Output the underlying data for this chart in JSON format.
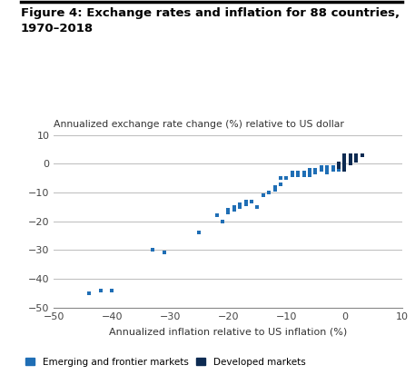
{
  "title": "Figure 4: Exchange rates and inflation for 88 countries,\n1970–2018",
  "ylabel": "Annualized exchange rate change (%) relative to US dollar",
  "xlabel": "Annualized inflation relative to US inflation (%)",
  "xlim": [
    -50,
    10
  ],
  "ylim": [
    -50,
    10
  ],
  "xticks": [
    -50,
    -40,
    -30,
    -20,
    -10,
    0,
    10
  ],
  "yticks": [
    -50,
    -40,
    -30,
    -20,
    -10,
    0,
    10
  ],
  "emerging_color": "#1F6EB5",
  "developed_color": "#0D2B52",
  "legend_emerging": "Emerging and frontier markets",
  "legend_developed": "Developed markets",
  "emerging_x": [
    -44,
    -42,
    -40,
    -33,
    -31,
    -25,
    -22,
    -21,
    -20,
    -20,
    -19,
    -19,
    -18,
    -18,
    -17,
    -17,
    -16,
    -15,
    -14,
    -13,
    -12,
    -12,
    -11,
    -11,
    -10,
    -9,
    -9,
    -8,
    -8,
    -7,
    -7,
    -6,
    -6,
    -6,
    -5,
    -5,
    -5,
    -4,
    -4,
    -4,
    -3,
    -3,
    -3,
    -2,
    -2,
    -2,
    -1,
    -1,
    -1,
    -1,
    0,
    0,
    0,
    1,
    1
  ],
  "emerging_y": [
    -45,
    -44,
    -44,
    -30,
    -31,
    -24,
    -18,
    -20,
    -16,
    -17,
    -15,
    -16,
    -15,
    -14,
    -14,
    -13,
    -13,
    -15,
    -11,
    -10,
    -8,
    -9,
    -5,
    -7,
    -5,
    -4,
    -3,
    -3,
    -4,
    -3,
    -4,
    -2,
    -3,
    -4,
    -2,
    -2,
    -3,
    -1,
    -2,
    -2,
    -1,
    -2,
    -3,
    -1,
    -2,
    -1,
    -1,
    0,
    -1,
    -2,
    0,
    -1,
    1,
    0,
    1
  ],
  "developed_x": [
    -1,
    -1,
    0,
    0,
    0,
    0,
    0,
    0,
    1,
    1,
    1,
    1,
    1,
    2,
    2,
    2,
    2,
    3
  ],
  "developed_y": [
    -1,
    0,
    -2,
    -1,
    0,
    1,
    2,
    3,
    0,
    1,
    2,
    3,
    2,
    1,
    2,
    3,
    2,
    3
  ]
}
